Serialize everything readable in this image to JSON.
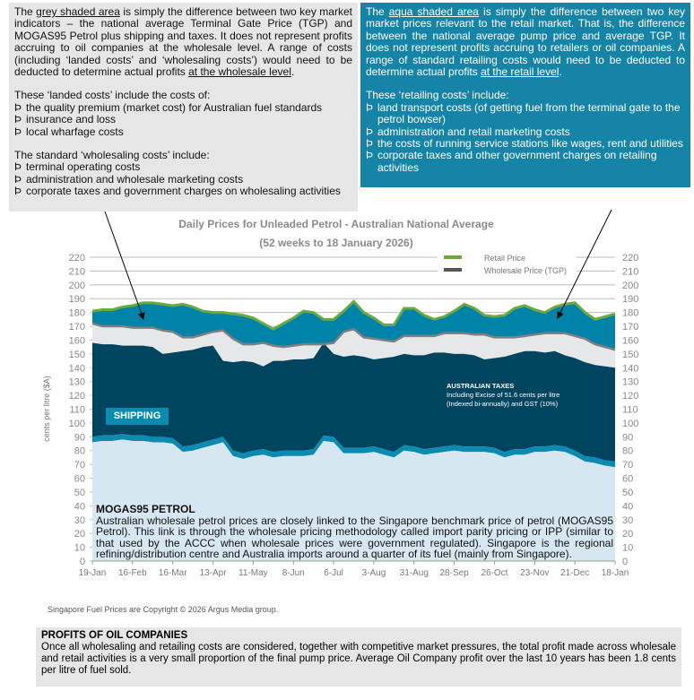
{
  "left_box": {
    "p1_pre": "The ",
    "p1_u1": "grey shaded area",
    "p1_mid": " is simply the difference between two key market indicators – the national average Terminal Gate Price (TGP) and MOGAS95 Petrol plus shipping and taxes. It does not represent profits accruing to oil companies at the wholesale level. A range of costs (including ‘landed costs’ and ‘wholesaling costs’) would need to be deducted to determine actual profits ",
    "p1_u2": "at the wholesale level",
    "p1_end": ".",
    "landed_heading": "These ‘landed costs’ include the costs of:",
    "landed_items": [
      "the quality premium (market cost) for Australian fuel standards",
      "insurance and loss",
      "local wharfage costs"
    ],
    "wholesale_heading": "The standard ‘wholesaling costs’ include:",
    "wholesale_items": [
      "terminal operating costs",
      "administration and wholesale marketing costs",
      "corporate taxes and government charges on wholesaling activities"
    ],
    "bullet": "Þ"
  },
  "right_box": {
    "p1_pre": "The ",
    "p1_u1": "aqua shaded area",
    "p1_mid": " is simply the difference between two key market prices relevant to the retail market. That is, the difference between the national average pump price and average TGP. It does not represent profits accruing to retailers or oil companies. A range of standard retailing costs would need to be deducted to determine actual profits ",
    "p1_u2": "at the retail level",
    "p1_end": ".",
    "heading": "These ‘retailing costs’ include:",
    "items": [
      "land transport costs (of getting fuel from the terminal gate to the petrol bowser)",
      "administration and retail marketing costs",
      "the costs of running service stations like wages, rent and utilities",
      "corporate taxes and other government charges on retailing activities"
    ]
  },
  "chart_data": {
    "type": "area",
    "title": "Daily Prices for Unleaded Petrol - Australian National Average",
    "subtitle": "(52 weeks to 18 January 2026)",
    "ylabel": "cents per litre ($A)",
    "ylim": [
      0,
      220
    ],
    "yticks": [
      0,
      10,
      20,
      30,
      40,
      50,
      60,
      70,
      80,
      90,
      100,
      110,
      120,
      130,
      140,
      150,
      160,
      170,
      180,
      190,
      200,
      210,
      220
    ],
    "grid": true,
    "legend": "top-right",
    "xticks": [
      "19-Jan",
      "16-Feb",
      "16-Mar",
      "13-Apr",
      "11-May",
      "8-Jun",
      "6-Jul",
      "3-Aug",
      "31-Aug",
      "28-Sep",
      "26-Oct",
      "23-Nov",
      "21-Dec",
      "18-Jan"
    ],
    "series": [
      {
        "name": "Retail Price",
        "color": "#6aa842",
        "values": [
          181,
          182,
          182,
          184,
          185,
          187,
          187,
          186,
          185,
          186,
          184,
          181,
          180,
          180,
          179,
          178,
          176,
          172,
          168,
          172,
          176,
          181,
          180,
          175,
          175,
          181,
          188,
          180,
          176,
          171,
          171,
          183,
          183,
          178,
          175,
          177,
          181,
          186,
          183,
          178,
          177,
          178,
          183,
          185,
          182,
          180,
          184,
          186,
          187,
          180,
          175,
          177,
          179
        ]
      },
      {
        "name": "Wholesale Price (TGP)",
        "color": "#7f7f7f",
        "values": [
          172,
          170,
          170,
          170,
          169,
          169,
          169,
          167,
          166,
          162,
          162,
          164,
          166,
          167,
          161,
          157,
          157,
          158,
          156,
          155,
          156,
          157,
          157,
          157,
          158,
          166,
          168,
          162,
          161,
          160,
          159,
          163,
          163,
          163,
          163,
          165,
          165,
          165,
          164,
          164,
          162,
          162,
          162,
          163,
          164,
          165,
          165,
          165,
          163,
          161,
          157,
          155,
          153
        ]
      },
      {
        "values": [
          158,
          157,
          157,
          156,
          156,
          156,
          155,
          150,
          151,
          152,
          153,
          155,
          156,
          145,
          144,
          145,
          144,
          141,
          145,
          145,
          146,
          146,
          147,
          158,
          150,
          148,
          149,
          148,
          146,
          147,
          148,
          150,
          149,
          149,
          151,
          151,
          150,
          150,
          149,
          146,
          147,
          148,
          150,
          152,
          152,
          151,
          152,
          149,
          147,
          144,
          142,
          141,
          140
        ]
      },
      {
        "values": [
          90,
          91,
          91,
          92,
          91,
          91,
          90,
          90,
          89,
          83,
          84,
          86,
          88,
          90,
          80,
          78,
          80,
          81,
          79,
          80,
          80,
          80,
          81,
          91,
          90,
          82,
          82,
          82,
          83,
          81,
          79,
          84,
          83,
          81,
          82,
          83,
          84,
          83,
          83,
          83,
          82,
          79,
          81,
          81,
          83,
          83,
          84,
          83,
          80,
          76,
          75,
          73,
          72
        ]
      },
      {
        "values": [
          86,
          87,
          87,
          88,
          87,
          87,
          86,
          86,
          85,
          79,
          80,
          82,
          84,
          86,
          76,
          74,
          76,
          77,
          75,
          76,
          76,
          76,
          77,
          87,
          86,
          78,
          78,
          78,
          79,
          77,
          75,
          80,
          79,
          77,
          78,
          79,
          80,
          79,
          79,
          79,
          78,
          75,
          77,
          77,
          79,
          79,
          80,
          79,
          76,
          72,
          71,
          69,
          68
        ]
      }
    ],
    "colors": {
      "retail_margin": "#0083a9",
      "wholesale_margin": "#e6e7e9",
      "taxes": "#004560",
      "shipping": "#0b8bb0",
      "mogas": "#d6e7f1"
    },
    "annotations": {
      "shipping": "SHIPPING",
      "taxes_title": "AUSTRALIAN TAXES",
      "taxes_l1": "Including Excise of 51.6 cents per litre",
      "taxes_l2": "(Indexed bi-annually) and GST (10%)",
      "mogas_title": "MOGAS95 PETROL",
      "mogas_text": "Australian wholesale petrol prices are closely linked to the Singapore benchmark price of petrol (MOGAS95 Petrol). This link is through the wholesale pricing methodology called import parity pricing or IPP (similar to that used by the ACCC when wholesale prices were government regulated). Singapore is the regional refining/distribution centre and Australia imports around a quarter of its fuel (mainly from Singapore)."
    }
  },
  "footnote": "Singapore Fuel Prices are Copyright © 2026 Argus Media group.",
  "bottom_box": {
    "title": "PROFITS OF OIL COMPANIES",
    "text": "Once all wholesaling and retailing costs are considered, together with competitive market pressures, the total profit made across wholesale and retail activities is a very small proportion of the final pump price. Average Oil Company profit over the last 10 years has been 1.8 cents per litre of fuel sold."
  }
}
